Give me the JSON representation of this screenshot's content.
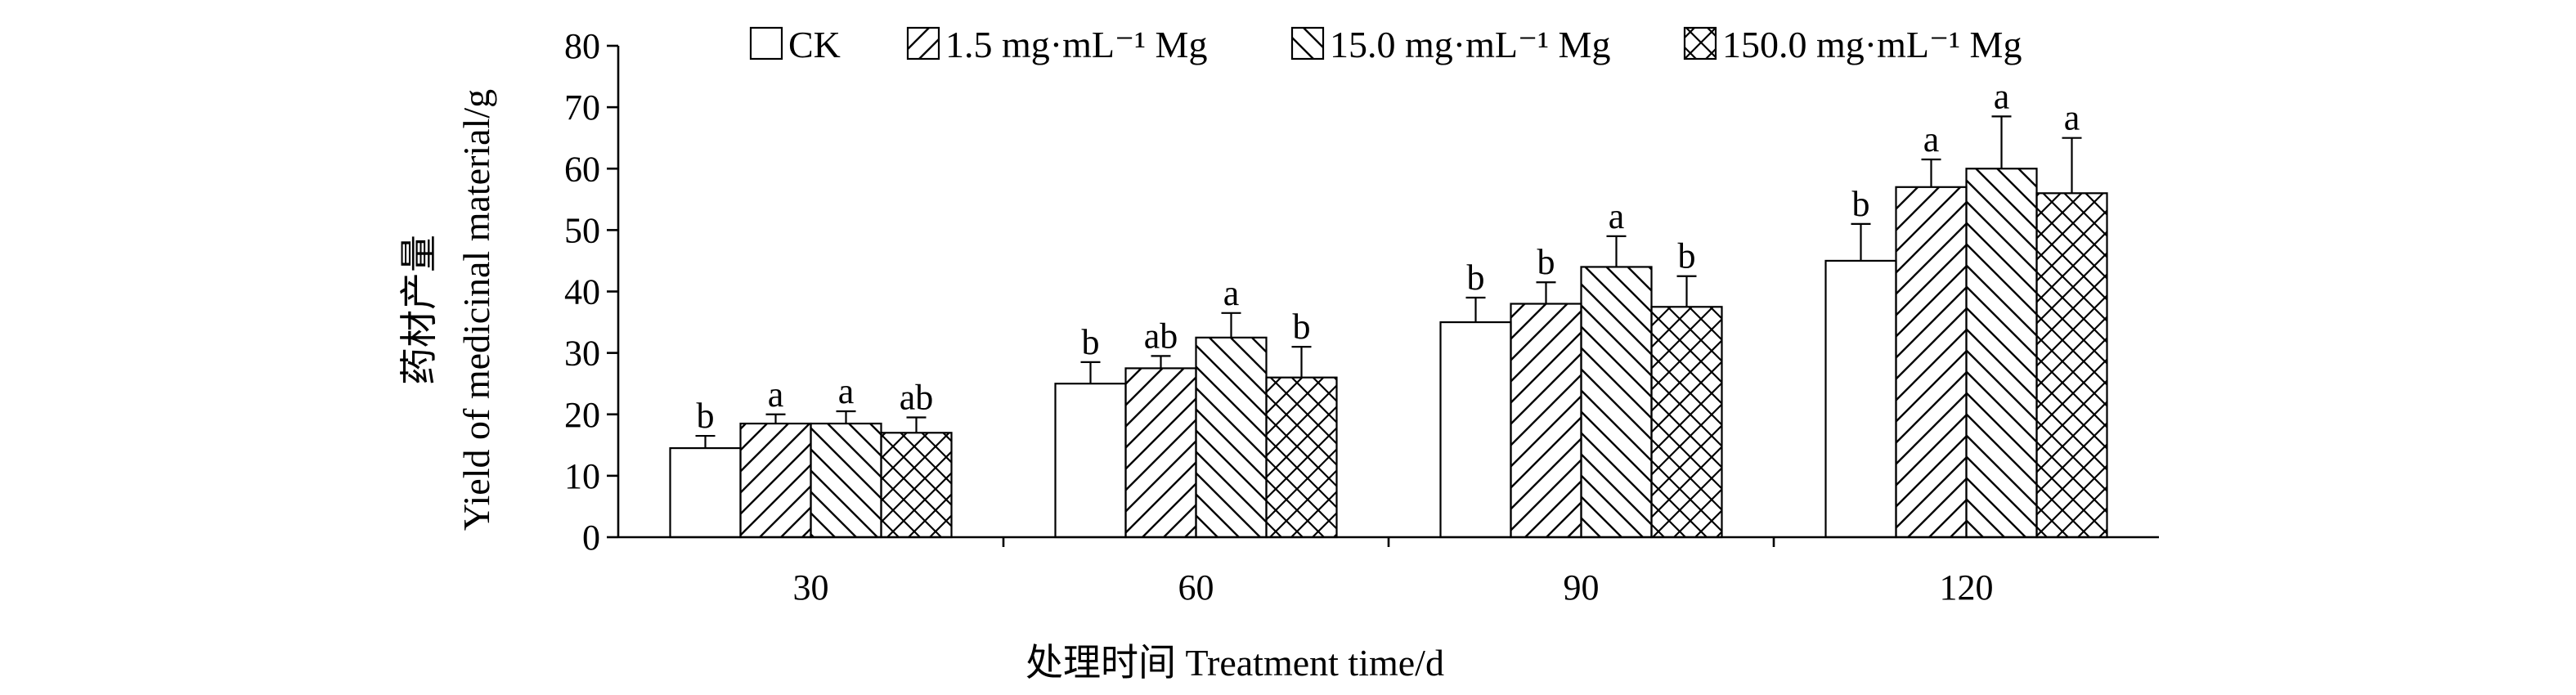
{
  "chart_data": {
    "type": "bar",
    "xlabel": "处理时间 Treatment time/d",
    "ylabel": "Yield of medicinal material/g",
    "ylabel_cn": "药材产量",
    "categories": [
      "30",
      "60",
      "90",
      "120"
    ],
    "ylim": [
      0,
      80
    ],
    "yticks": [
      "0",
      "10",
      "20",
      "30",
      "40",
      "50",
      "60",
      "70",
      "80"
    ],
    "grid": false,
    "legend_position": "top",
    "error_bars": true,
    "series": [
      {
        "name": "CK",
        "pattern": "none",
        "values": [
          14.5,
          25.0,
          35.0,
          45.0
        ],
        "errors": [
          2.0,
          3.5,
          4.0,
          6.0
        ],
        "labels": [
          "b",
          "b",
          "b",
          "b"
        ]
      },
      {
        "name": "1.5 mg·mL⁻¹ Mg",
        "pattern": "forward-diagonal",
        "values": [
          18.5,
          27.5,
          38.0,
          57.0
        ],
        "errors": [
          1.5,
          2.0,
          3.5,
          4.5
        ],
        "labels": [
          "a",
          "ab",
          "b",
          "a"
        ]
      },
      {
        "name": "15.0 mg·mL⁻¹ Mg",
        "pattern": "backward-diagonal",
        "values": [
          18.5,
          32.5,
          44.0,
          60.0
        ],
        "errors": [
          2.0,
          4.0,
          5.0,
          8.5
        ],
        "labels": [
          "a",
          "a",
          "a",
          "a"
        ]
      },
      {
        "name": "150.0 mg·mL⁻¹ Mg",
        "pattern": "cross-hatch",
        "values": [
          17.0,
          26.0,
          37.5,
          56.0
        ],
        "errors": [
          2.5,
          5.0,
          5.0,
          9.0
        ],
        "labels": [
          "ab",
          "b",
          "b",
          "a"
        ]
      }
    ]
  }
}
